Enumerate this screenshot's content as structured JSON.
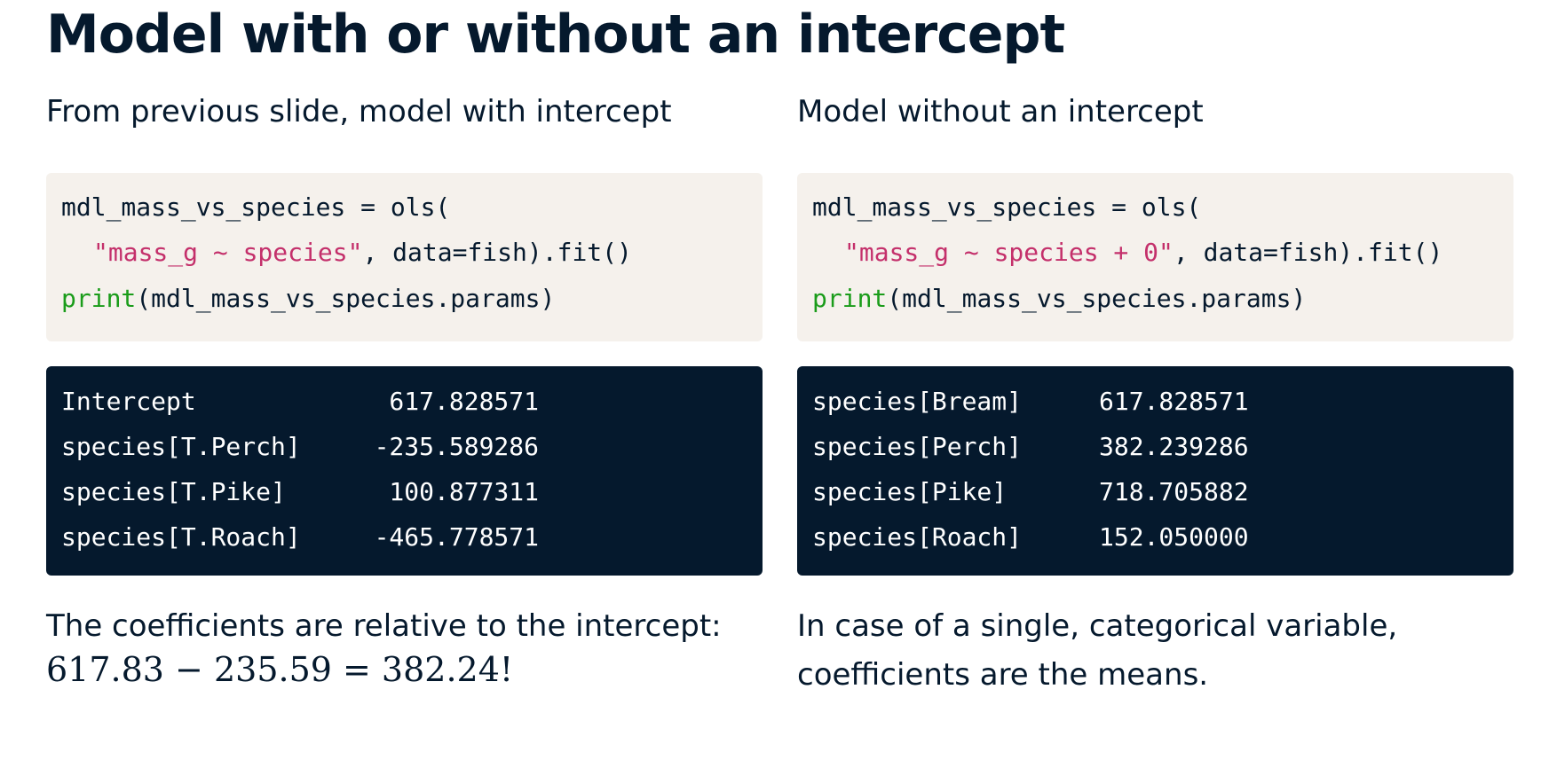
{
  "title": "Model with or without an intercept",
  "left": {
    "subtitle": "From previous slide, model with intercept",
    "code": [
      [
        "mdl_mass_vs_species = ols("
      ],
      [
        "\"mass_g ~ species\"",
        ", data=fish).fit()"
      ],
      [
        "print",
        "(mdl_mass_vs_species.params)"
      ]
    ],
    "output": [
      [
        "Intercept",
        "617.828571"
      ],
      [
        "species[T.Perch]",
        "-235.589286"
      ],
      [
        "species[T.Pike]",
        "100.877311"
      ],
      [
        "species[T.Roach]",
        "-465.778571"
      ]
    ],
    "note": [
      "The coefficients are relative to the intercept:",
      "617.83 − 235.59 = 382.24!"
    ]
  },
  "right": {
    "subtitle": "Model without an intercept",
    "code": [
      [
        "mdl_mass_vs_species = ols("
      ],
      [
        "\"mass_g ~ species + 0\"",
        ", data=fish).fit()"
      ],
      [
        "print",
        "(mdl_mass_vs_species.params)"
      ]
    ],
    "output": [
      [
        "species[Bream]",
        "617.828571"
      ],
      [
        "species[Perch]",
        "382.239286"
      ],
      [
        "species[Pike]",
        "718.705882"
      ],
      [
        "species[Roach]",
        "152.050000"
      ]
    ],
    "note": [
      "In case of a single, categorical variable,",
      "coefficients are the means."
    ]
  }
}
